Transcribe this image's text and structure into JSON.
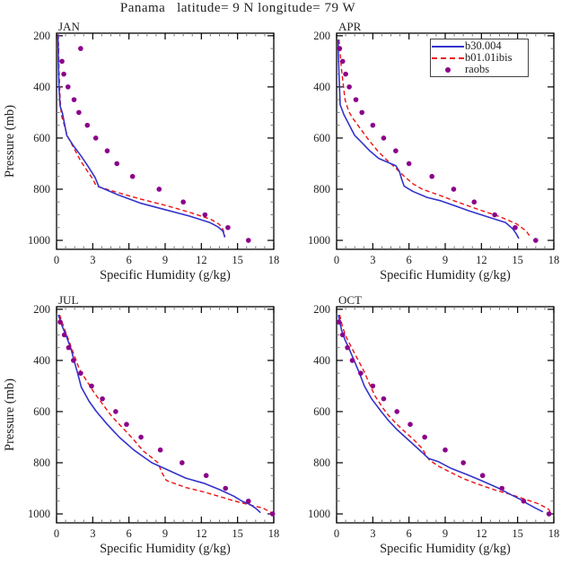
{
  "title": "Panama   latitude= 9 N longitude= 79 W",
  "colors": {
    "model_line": "#3333cc",
    "ibis_line": "#ee1111",
    "raobs_dot": "#8b008b",
    "frame": "#000000",
    "minor_tick": "#777777",
    "text": "#222222"
  },
  "axes": {
    "x_label": "Specific Humidity (g/kg)",
    "y_label": "Pressure (mb)",
    "x_ticks": [
      0,
      3,
      6,
      9,
      12,
      15,
      18
    ],
    "y_ticks": [
      200,
      400,
      600,
      800,
      1000
    ],
    "x_range": [
      0,
      18
    ],
    "y_range": [
      200,
      1000
    ],
    "y_inverted": true,
    "x_minor_step": 0.75,
    "y_minor_step": 50
  },
  "legend": {
    "items": [
      {
        "label": "b30.004",
        "marker": "solid-line",
        "color": "#3333cc"
      },
      {
        "label": "b01.01ibis",
        "marker": "dashed-line",
        "color": "#ee1111"
      },
      {
        "label": "raobs",
        "marker": "dot",
        "color": "#8b008b"
      }
    ]
  },
  "chart_data": [
    {
      "type": "line",
      "title": "JAN",
      "xlabel": "Specific Humidity (g/kg)",
      "ylabel": "Pressure (mb)",
      "xlim": [
        0,
        18
      ],
      "ylim": [
        1000,
        200
      ],
      "series": [
        {
          "name": "b30.004",
          "style": "solid",
          "color": "#3333cc",
          "points": [
            [
              0.12,
              195
            ],
            [
              0.15,
              300
            ],
            [
              0.2,
              400
            ],
            [
              0.3,
              475
            ],
            [
              0.5,
              505
            ],
            [
              0.85,
              590
            ],
            [
              1.4,
              630
            ],
            [
              2.0,
              668
            ],
            [
              2.6,
              710
            ],
            [
              3.2,
              755
            ],
            [
              3.5,
              790
            ],
            [
              5.0,
              820
            ],
            [
              7.0,
              855
            ],
            [
              9.0,
              880
            ],
            [
              11.0,
              905
            ],
            [
              12.7,
              930
            ],
            [
              13.4,
              948
            ],
            [
              13.8,
              965
            ],
            [
              13.95,
              988
            ]
          ]
        },
        {
          "name": "b01.01ibis",
          "style": "dashed",
          "color": "#ee1111",
          "points": [
            [
              0.15,
              195
            ],
            [
              0.2,
              330
            ],
            [
              0.3,
              450
            ],
            [
              0.4,
              510
            ],
            [
              0.9,
              592
            ],
            [
              1.5,
              645
            ],
            [
              2.0,
              690
            ],
            [
              2.5,
              725
            ],
            [
              3.0,
              760
            ],
            [
              3.3,
              788
            ],
            [
              5.0,
              812
            ],
            [
              7.0,
              839
            ],
            [
              9.0,
              863
            ],
            [
              11.0,
              890
            ],
            [
              12.8,
              918
            ],
            [
              13.5,
              938
            ],
            [
              13.8,
              958
            ],
            [
              13.95,
              985
            ]
          ]
        },
        {
          "name": "raobs",
          "style": "dots",
          "color": "#8b008b",
          "points": [
            [
              2.0,
              250
            ],
            [
              0.45,
              300
            ],
            [
              0.6,
              350
            ],
            [
              0.95,
              400
            ],
            [
              1.45,
              450
            ],
            [
              1.85,
              500
            ],
            [
              2.55,
              550
            ],
            [
              3.25,
              600
            ],
            [
              4.2,
              650
            ],
            [
              5.0,
              700
            ],
            [
              6.3,
              750
            ],
            [
              8.5,
              800
            ],
            [
              10.5,
              850
            ],
            [
              12.3,
              900
            ],
            [
              14.2,
              950
            ],
            [
              15.9,
              1000
            ]
          ]
        }
      ]
    },
    {
      "type": "line",
      "title": "APR",
      "xlabel": "Specific Humidity (g/kg)",
      "ylabel": "Pressure (mb)",
      "xlim": [
        0,
        18
      ],
      "ylim": [
        1000,
        200
      ],
      "series": [
        {
          "name": "b30.004",
          "style": "solid",
          "color": "#3333cc",
          "points": [
            [
              0.12,
              215
            ],
            [
              0.2,
              350
            ],
            [
              0.3,
              470
            ],
            [
              0.6,
              508
            ],
            [
              1.5,
              590
            ],
            [
              2.1,
              618
            ],
            [
              2.7,
              648
            ],
            [
              3.5,
              680
            ],
            [
              4.9,
              708
            ],
            [
              5.2,
              730
            ],
            [
              5.4,
              762
            ],
            [
              5.6,
              788
            ],
            [
              6.3,
              808
            ],
            [
              7.5,
              832
            ],
            [
              8.6,
              845
            ],
            [
              10.0,
              868
            ],
            [
              11.0,
              885
            ],
            [
              12.5,
              908
            ],
            [
              14.0,
              930
            ],
            [
              14.6,
              955
            ],
            [
              14.9,
              975
            ],
            [
              15.1,
              993
            ]
          ]
        },
        {
          "name": "b01.01ibis",
          "style": "dashed",
          "color": "#ee1111",
          "points": [
            [
              0.2,
              215
            ],
            [
              0.4,
              330
            ],
            [
              0.7,
              450
            ],
            [
              1.0,
              495
            ],
            [
              1.3,
              520
            ],
            [
              2.0,
              565
            ],
            [
              2.7,
              610
            ],
            [
              3.4,
              650
            ],
            [
              4.1,
              683
            ],
            [
              4.8,
              713
            ],
            [
              5.5,
              745
            ],
            [
              6.3,
              778
            ],
            [
              7.1,
              800
            ],
            [
              8.6,
              825
            ],
            [
              10.0,
              850
            ],
            [
              11.5,
              875
            ],
            [
              13.5,
              907
            ],
            [
              14.9,
              935
            ],
            [
              15.7,
              963
            ],
            [
              16.1,
              990
            ]
          ]
        },
        {
          "name": "raobs",
          "style": "dots",
          "color": "#8b008b",
          "points": [
            [
              0.25,
              250
            ],
            [
              0.5,
              300
            ],
            [
              0.75,
              350
            ],
            [
              1.05,
              400
            ],
            [
              1.6,
              450
            ],
            [
              2.1,
              500
            ],
            [
              3.0,
              550
            ],
            [
              3.9,
              600
            ],
            [
              4.9,
              650
            ],
            [
              6.0,
              700
            ],
            [
              7.9,
              750
            ],
            [
              9.7,
              800
            ],
            [
              11.4,
              850
            ],
            [
              13.1,
              900
            ],
            [
              14.8,
              950
            ],
            [
              16.5,
              1000
            ]
          ]
        }
      ]
    },
    {
      "type": "line",
      "title": "JUL",
      "xlabel": "Specific Humidity (g/kg)",
      "ylabel": "Pressure (mb)",
      "xlim": [
        0,
        18
      ],
      "ylim": [
        1000,
        200
      ],
      "series": [
        {
          "name": "b30.004",
          "style": "solid",
          "color": "#3333cc",
          "points": [
            [
              0.15,
              222
            ],
            [
              0.5,
              270
            ],
            [
              0.85,
              310
            ],
            [
              1.2,
              355
            ],
            [
              1.45,
              400
            ],
            [
              1.75,
              450
            ],
            [
              2.05,
              505
            ],
            [
              2.7,
              560
            ],
            [
              3.3,
              600
            ],
            [
              4.2,
              650
            ],
            [
              5.2,
              700
            ],
            [
              6.4,
              750
            ],
            [
              7.2,
              777
            ],
            [
              7.9,
              800
            ],
            [
              9.3,
              830
            ],
            [
              10.7,
              860
            ],
            [
              12.2,
              880
            ],
            [
              13.5,
              905
            ],
            [
              14.7,
              931
            ],
            [
              15.4,
              951
            ],
            [
              16.0,
              962
            ],
            [
              16.5,
              978
            ],
            [
              16.9,
              995
            ]
          ]
        },
        {
          "name": "b01.01ibis",
          "style": "dashed",
          "color": "#ee1111",
          "points": [
            [
              0.25,
              222
            ],
            [
              0.6,
              270
            ],
            [
              1.0,
              320
            ],
            [
              1.5,
              385
            ],
            [
              1.9,
              435
            ],
            [
              2.5,
              480
            ],
            [
              3.1,
              525
            ],
            [
              3.8,
              570
            ],
            [
              4.6,
              620
            ],
            [
              5.4,
              660
            ],
            [
              6.3,
              705
            ],
            [
              7.2,
              755
            ],
            [
              7.9,
              780
            ],
            [
              8.4,
              800
            ],
            [
              8.75,
              840
            ],
            [
              9.1,
              869
            ],
            [
              10.7,
              897
            ],
            [
              12.2,
              914
            ],
            [
              13.5,
              932
            ],
            [
              14.7,
              949
            ],
            [
              16.1,
              966
            ],
            [
              17.1,
              977
            ],
            [
              17.8,
              995
            ]
          ]
        },
        {
          "name": "raobs",
          "style": "dots",
          "color": "#8b008b",
          "points": [
            [
              0.3,
              250
            ],
            [
              0.65,
              300
            ],
            [
              1.0,
              350
            ],
            [
              1.4,
              400
            ],
            [
              2.0,
              450
            ],
            [
              2.9,
              500
            ],
            [
              3.8,
              550
            ],
            [
              4.9,
              600
            ],
            [
              5.8,
              650
            ],
            [
              7.0,
              700
            ],
            [
              8.6,
              750
            ],
            [
              10.4,
              800
            ],
            [
              12.4,
              850
            ],
            [
              14.0,
              900
            ],
            [
              15.9,
              950
            ],
            [
              17.9,
              1000
            ]
          ]
        }
      ]
    },
    {
      "type": "line",
      "title": "OCT",
      "xlabel": "Specific Humidity (g/kg)",
      "ylabel": "Pressure (mb)",
      "xlim": [
        0,
        18
      ],
      "ylim": [
        1000,
        200
      ],
      "series": [
        {
          "name": "b30.004",
          "style": "solid",
          "color": "#3333cc",
          "points": [
            [
              0.15,
              222
            ],
            [
              0.4,
              280
            ],
            [
              0.7,
              320
            ],
            [
              1.0,
              350
            ],
            [
              1.45,
              400
            ],
            [
              1.9,
              450
            ],
            [
              2.3,
              500
            ],
            [
              2.9,
              550
            ],
            [
              3.7,
              600
            ],
            [
              4.3,
              635
            ],
            [
              5.0,
              670
            ],
            [
              5.7,
              700
            ],
            [
              6.4,
              730
            ],
            [
              7.1,
              760
            ],
            [
              7.6,
              783
            ],
            [
              8.4,
              795
            ],
            [
              9.5,
              822
            ],
            [
              10.8,
              846
            ],
            [
              12.0,
              870
            ],
            [
              13.3,
              897
            ],
            [
              14.5,
              926
            ],
            [
              15.3,
              945
            ],
            [
              15.8,
              960
            ],
            [
              16.5,
              978
            ],
            [
              17.1,
              992
            ]
          ]
        },
        {
          "name": "b01.01ibis",
          "style": "dashed",
          "color": "#ee1111",
          "points": [
            [
              0.25,
              222
            ],
            [
              0.5,
              270
            ],
            [
              0.8,
              310
            ],
            [
              1.3,
              355
            ],
            [
              1.8,
              400
            ],
            [
              2.3,
              445
            ],
            [
              2.7,
              490
            ],
            [
              3.2,
              540
            ],
            [
              3.9,
              590
            ],
            [
              4.3,
              615
            ],
            [
              5.0,
              650
            ],
            [
              5.8,
              685
            ],
            [
              6.5,
              715
            ],
            [
              7.1,
              745
            ],
            [
              7.4,
              770
            ],
            [
              7.7,
              790
            ],
            [
              8.5,
              815
            ],
            [
              9.55,
              840
            ],
            [
              10.5,
              862
            ],
            [
              11.5,
              880
            ],
            [
              12.4,
              895
            ],
            [
              13.3,
              909
            ],
            [
              14.3,
              922
            ],
            [
              15.25,
              937
            ],
            [
              16.2,
              952
            ],
            [
              16.7,
              960
            ],
            [
              17.2,
              972
            ],
            [
              17.6,
              983
            ],
            [
              17.7,
              992
            ]
          ]
        },
        {
          "name": "raobs",
          "style": "dots",
          "color": "#8b008b",
          "points": [
            [
              0.2,
              250
            ],
            [
              0.5,
              300
            ],
            [
              0.9,
              350
            ],
            [
              1.3,
              400
            ],
            [
              2.0,
              450
            ],
            [
              3.0,
              500
            ],
            [
              3.9,
              550
            ],
            [
              5.0,
              600
            ],
            [
              6.1,
              650
            ],
            [
              7.3,
              700
            ],
            [
              9.0,
              750
            ],
            [
              10.5,
              800
            ],
            [
              12.1,
              850
            ],
            [
              13.7,
              900
            ],
            [
              15.5,
              950
            ],
            [
              17.6,
              1000
            ]
          ]
        }
      ]
    }
  ]
}
